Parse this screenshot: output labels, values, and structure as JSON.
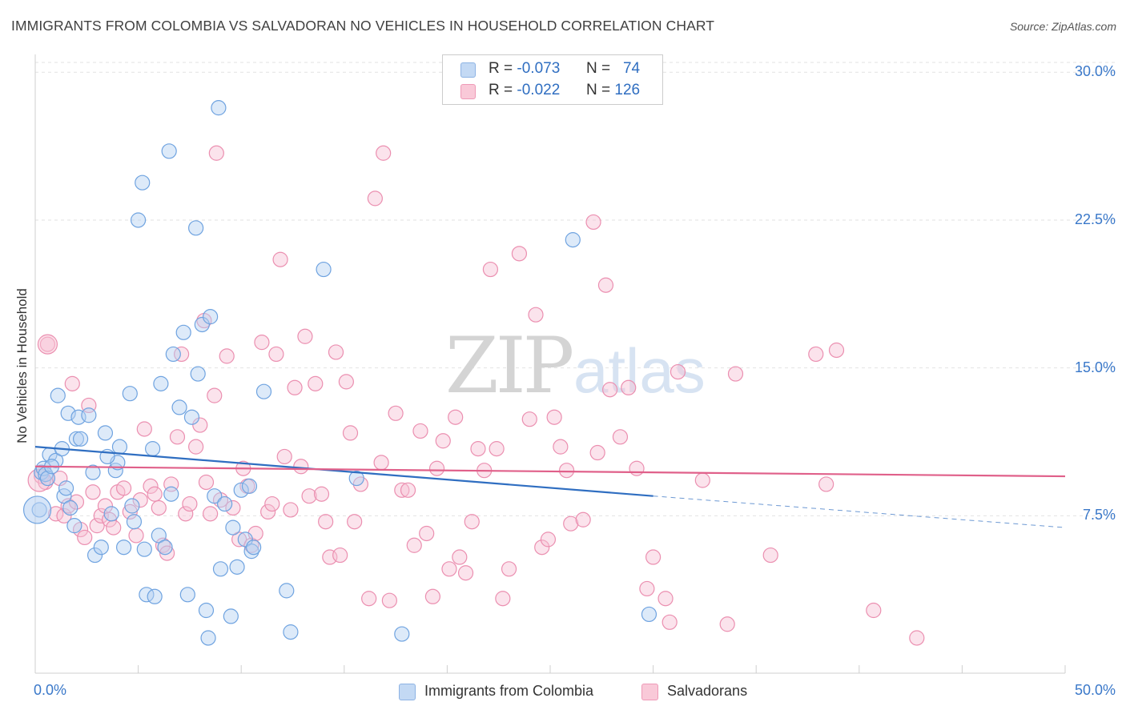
{
  "title": "IMMIGRANTS FROM COLOMBIA VS SALVADORAN NO VEHICLES IN HOUSEHOLD CORRELATION CHART",
  "source": "Source: ZipAtlas.com",
  "watermark": {
    "zip": "ZIP",
    "atlas": "atlas"
  },
  "colors": {
    "blue": "#9ec3ee",
    "blue_line": "#2f6ec1",
    "pink": "#f4a9c3",
    "pink_line": "#e0608a",
    "tick_label": "#3a78c9"
  },
  "legend": {
    "rows": [
      {
        "r_label": "R =",
        "r_value": "-0.073",
        "n_label": "N =",
        "n_value": "74"
      },
      {
        "r_label": "R =",
        "r_value": "-0.022",
        "n_label": "N =",
        "n_value": "126"
      }
    ]
  },
  "bottom_legend": [
    "Immigrants from Colombia",
    "Salvadorans"
  ],
  "chart_data": {
    "type": "scatter",
    "title": "IMMIGRANTS FROM COLOMBIA VS SALVADORAN NO VEHICLES IN HOUSEHOLD CORRELATION CHART",
    "xlabel": "",
    "ylabel": "No Vehicles in Household",
    "xlim": [
      0,
      50
    ],
    "ylim": [
      0,
      30.5
    ],
    "y_ticks": [
      "7.5%",
      "15.0%",
      "22.5%",
      "30.0%"
    ],
    "x_ticks": [
      "0.0%",
      "50.0%"
    ],
    "y_tick_values": [
      7.5,
      15,
      22.5,
      30
    ],
    "grid": "horizontal dashed",
    "series": [
      {
        "name": "Immigrants from Colombia",
        "color": "#9ec3ee",
        "r": -0.073,
        "n": 74,
        "trend": {
          "x": [
            0,
            30
          ],
          "y": [
            11.0,
            8.5
          ],
          "dashed_to": [
            50,
            6.9
          ]
        },
        "points": [
          [
            0.2,
            7.8
          ],
          [
            0.3,
            9.7
          ],
          [
            0.4,
            9.9
          ],
          [
            0.5,
            9.6
          ],
          [
            0.6,
            9.4
          ],
          [
            0.7,
            10.6
          ],
          [
            1.0,
            10.3
          ],
          [
            1.1,
            13.6
          ],
          [
            1.3,
            10.9
          ],
          [
            1.4,
            8.5
          ],
          [
            1.6,
            12.7
          ],
          [
            1.7,
            7.9
          ],
          [
            1.9,
            7.0
          ],
          [
            2.0,
            11.4
          ],
          [
            2.1,
            12.5
          ],
          [
            2.2,
            11.4
          ],
          [
            2.6,
            12.6
          ],
          [
            2.8,
            9.7
          ],
          [
            2.9,
            5.5
          ],
          [
            3.2,
            5.9
          ],
          [
            3.4,
            11.7
          ],
          [
            3.7,
            7.6
          ],
          [
            3.9,
            9.8
          ],
          [
            4.0,
            10.2
          ],
          [
            4.1,
            11.0
          ],
          [
            4.3,
            5.9
          ],
          [
            4.6,
            13.7
          ],
          [
            4.7,
            8.0
          ],
          [
            4.8,
            7.2
          ],
          [
            5.0,
            22.5
          ],
          [
            5.2,
            24.4
          ],
          [
            5.3,
            5.8
          ],
          [
            5.4,
            3.5
          ],
          [
            5.7,
            10.9
          ],
          [
            5.8,
            3.4
          ],
          [
            6.0,
            6.5
          ],
          [
            6.3,
            5.9
          ],
          [
            6.5,
            26.0
          ],
          [
            6.6,
            8.6
          ],
          [
            6.7,
            15.7
          ],
          [
            7.0,
            13.0
          ],
          [
            7.2,
            16.8
          ],
          [
            7.4,
            3.5
          ],
          [
            7.6,
            12.5
          ],
          [
            7.8,
            22.1
          ],
          [
            7.9,
            14.7
          ],
          [
            8.1,
            17.2
          ],
          [
            8.3,
            2.7
          ],
          [
            8.4,
            1.3
          ],
          [
            8.5,
            17.6
          ],
          [
            8.7,
            8.5
          ],
          [
            8.9,
            28.2
          ],
          [
            9.0,
            4.8
          ],
          [
            9.2,
            8.1
          ],
          [
            9.5,
            2.4
          ],
          [
            9.6,
            6.9
          ],
          [
            9.8,
            4.9
          ],
          [
            10.0,
            8.8
          ],
          [
            10.2,
            6.3
          ],
          [
            10.4,
            9.0
          ],
          [
            10.5,
            5.7
          ],
          [
            10.6,
            5.9
          ],
          [
            11.1,
            13.8
          ],
          [
            12.2,
            3.7
          ],
          [
            12.4,
            1.6
          ],
          [
            14.0,
            20.0
          ],
          [
            15.6,
            9.4
          ],
          [
            17.8,
            1.5
          ],
          [
            26.1,
            21.5
          ],
          [
            29.8,
            2.5
          ],
          [
            0.8,
            10.0
          ],
          [
            1.5,
            8.9
          ],
          [
            3.5,
            10.5
          ],
          [
            6.1,
            14.2
          ]
        ]
      },
      {
        "name": "Salvadorans",
        "color": "#f4a9c3",
        "r": -0.022,
        "n": 126,
        "trend": {
          "x": [
            0,
            50
          ],
          "y": [
            10.0,
            9.5
          ]
        },
        "points": [
          [
            0.3,
            9.5
          ],
          [
            0.5,
            9.2
          ],
          [
            0.6,
            16.2
          ],
          [
            1.0,
            7.6
          ],
          [
            1.2,
            9.4
          ],
          [
            1.4,
            7.5
          ],
          [
            1.6,
            8.0
          ],
          [
            1.8,
            14.2
          ],
          [
            2.0,
            8.2
          ],
          [
            2.2,
            6.8
          ],
          [
            2.4,
            6.4
          ],
          [
            2.6,
            13.1
          ],
          [
            2.8,
            8.7
          ],
          [
            3.0,
            7.0
          ],
          [
            3.2,
            7.5
          ],
          [
            3.4,
            8.0
          ],
          [
            3.6,
            7.3
          ],
          [
            3.8,
            6.9
          ],
          [
            4.0,
            8.7
          ],
          [
            4.3,
            8.9
          ],
          [
            4.6,
            7.7
          ],
          [
            4.9,
            6.5
          ],
          [
            5.1,
            8.3
          ],
          [
            5.3,
            11.9
          ],
          [
            5.6,
            9.0
          ],
          [
            5.8,
            8.6
          ],
          [
            6.0,
            7.9
          ],
          [
            6.2,
            6.0
          ],
          [
            6.4,
            5.6
          ],
          [
            6.6,
            9.1
          ],
          [
            6.9,
            11.5
          ],
          [
            7.1,
            15.7
          ],
          [
            7.3,
            7.6
          ],
          [
            7.5,
            8.1
          ],
          [
            7.8,
            11.0
          ],
          [
            8.0,
            12.1
          ],
          [
            8.3,
            9.2
          ],
          [
            8.5,
            7.6
          ],
          [
            8.7,
            13.6
          ],
          [
            8.8,
            25.9
          ],
          [
            9.0,
            8.3
          ],
          [
            9.3,
            15.6
          ],
          [
            9.6,
            7.9
          ],
          [
            9.9,
            6.3
          ],
          [
            10.1,
            9.9
          ],
          [
            10.3,
            9.0
          ],
          [
            10.5,
            6.0
          ],
          [
            10.7,
            6.6
          ],
          [
            11.0,
            16.3
          ],
          [
            11.3,
            7.7
          ],
          [
            11.5,
            8.1
          ],
          [
            11.7,
            15.7
          ],
          [
            11.9,
            20.5
          ],
          [
            12.1,
            10.5
          ],
          [
            12.4,
            7.8
          ],
          [
            12.6,
            14.0
          ],
          [
            12.9,
            10.0
          ],
          [
            13.1,
            16.6
          ],
          [
            13.3,
            8.5
          ],
          [
            13.6,
            14.2
          ],
          [
            13.9,
            8.6
          ],
          [
            14.1,
            7.2
          ],
          [
            14.3,
            5.4
          ],
          [
            14.6,
            15.8
          ],
          [
            14.8,
            5.5
          ],
          [
            15.1,
            14.3
          ],
          [
            15.3,
            11.7
          ],
          [
            15.5,
            7.2
          ],
          [
            15.8,
            9.1
          ],
          [
            16.2,
            3.3
          ],
          [
            16.5,
            23.6
          ],
          [
            16.8,
            10.2
          ],
          [
            16.9,
            25.9
          ],
          [
            17.2,
            3.2
          ],
          [
            17.5,
            12.7
          ],
          [
            17.8,
            8.8
          ],
          [
            18.1,
            8.8
          ],
          [
            18.4,
            6.0
          ],
          [
            18.7,
            11.8
          ],
          [
            19.0,
            6.6
          ],
          [
            19.3,
            3.4
          ],
          [
            19.5,
            9.9
          ],
          [
            19.8,
            11.3
          ],
          [
            20.1,
            4.8
          ],
          [
            20.4,
            12.5
          ],
          [
            20.6,
            5.4
          ],
          [
            20.9,
            4.6
          ],
          [
            21.2,
            7.2
          ],
          [
            21.5,
            10.9
          ],
          [
            21.8,
            9.8
          ],
          [
            22.1,
            20.0
          ],
          [
            22.4,
            10.9
          ],
          [
            22.7,
            3.3
          ],
          [
            23.0,
            4.8
          ],
          [
            23.5,
            20.8
          ],
          [
            24.0,
            12.4
          ],
          [
            24.3,
            17.7
          ],
          [
            24.6,
            5.9
          ],
          [
            24.9,
            6.3
          ],
          [
            25.2,
            12.5
          ],
          [
            25.5,
            11.0
          ],
          [
            25.8,
            9.8
          ],
          [
            26.0,
            7.1
          ],
          [
            26.6,
            7.3
          ],
          [
            27.1,
            22.4
          ],
          [
            27.3,
            10.7
          ],
          [
            27.7,
            19.2
          ],
          [
            27.9,
            13.9
          ],
          [
            28.4,
            11.5
          ],
          [
            28.8,
            14.0
          ],
          [
            29.2,
            9.9
          ],
          [
            29.7,
            3.8
          ],
          [
            30.0,
            5.4
          ],
          [
            30.6,
            3.3
          ],
          [
            30.8,
            2.1
          ],
          [
            31.2,
            14.8
          ],
          [
            32.4,
            9.3
          ],
          [
            33.6,
            2.0
          ],
          [
            34.0,
            14.7
          ],
          [
            35.7,
            5.5
          ],
          [
            37.9,
            15.7
          ],
          [
            38.4,
            9.1
          ],
          [
            38.9,
            15.9
          ],
          [
            40.7,
            2.7
          ],
          [
            42.8,
            1.3
          ],
          [
            8.2,
            17.4
          ]
        ]
      }
    ]
  }
}
